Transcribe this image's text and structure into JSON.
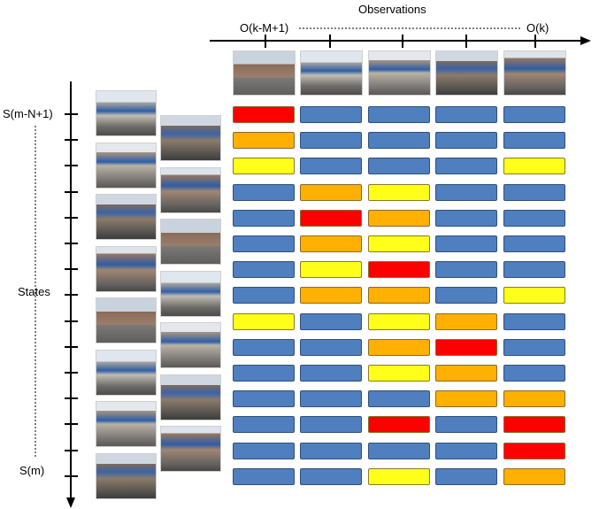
{
  "labels": {
    "observations": "Observations",
    "obs_start": "O(k-M+1)",
    "obs_end": "O(k)",
    "states": "States",
    "state_start": "S(m-N+1)",
    "state_end": "S(m)"
  },
  "colors": {
    "blue": "#4f7fbf",
    "red": "#ff0000",
    "orange": "#ffb000",
    "yellow": "#ffff1a",
    "axis": "#000000"
  },
  "grid": {
    "columns": 5,
    "rows": 15,
    "cells": [
      [
        "red",
        "blue",
        "blue",
        "blue",
        "blue"
      ],
      [
        "orange",
        "blue",
        "blue",
        "blue",
        "blue"
      ],
      [
        "yellow",
        "blue",
        "blue",
        "blue",
        "yellow"
      ],
      [
        "blue",
        "orange",
        "yellow",
        "blue",
        "blue"
      ],
      [
        "blue",
        "red",
        "orange",
        "blue",
        "blue"
      ],
      [
        "blue",
        "orange",
        "yellow",
        "blue",
        "blue"
      ],
      [
        "blue",
        "yellow",
        "red",
        "blue",
        "blue"
      ],
      [
        "blue",
        "orange",
        "orange",
        "blue",
        "yellow"
      ],
      [
        "yellow",
        "blue",
        "yellow",
        "orange",
        "blue"
      ],
      [
        "blue",
        "blue",
        "orange",
        "red",
        "blue"
      ],
      [
        "blue",
        "blue",
        "yellow",
        "orange",
        "blue"
      ],
      [
        "blue",
        "blue",
        "blue",
        "orange",
        "orange"
      ],
      [
        "blue",
        "blue",
        "red",
        "blue",
        "red"
      ],
      [
        "blue",
        "blue",
        "blue",
        "blue",
        "red"
      ],
      [
        "blue",
        "blue",
        "yellow",
        "blue",
        "orange"
      ]
    ]
  },
  "images": {
    "observation_count": 5,
    "state_column_1_count": 8,
    "state_column_2_count": 7
  }
}
